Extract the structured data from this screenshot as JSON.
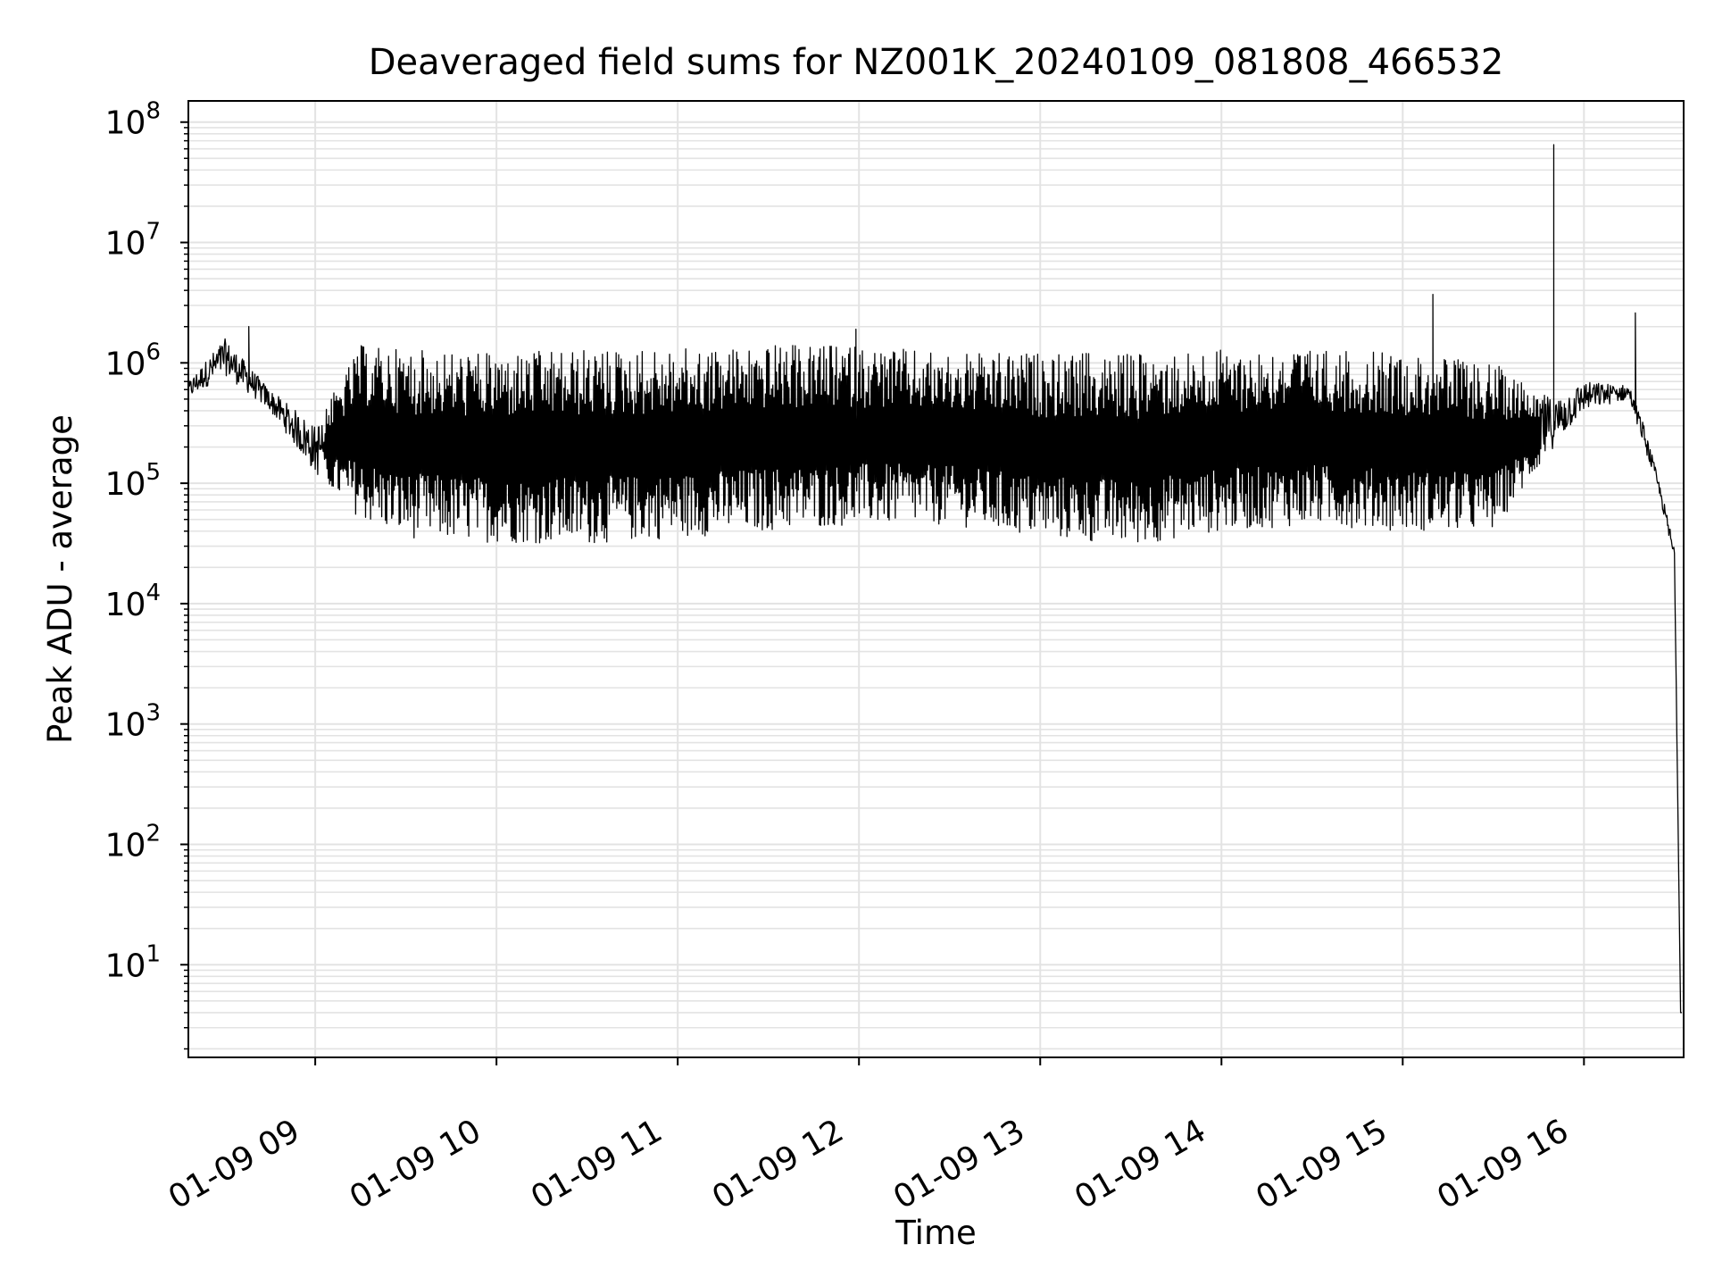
{
  "chart_data": {
    "type": "line",
    "title": "Deaveraged field sums for NZ001K_20240109_081808_466532",
    "xlabel": "Time",
    "ylabel": "Peak ADU - average",
    "yscale": "log",
    "ylim": [
      1.7,
      150000000
    ],
    "xlim": [
      "2024-01-09 08:18",
      "2024-01-09 16:33"
    ],
    "x_ticks": [
      {
        "value": "2024-01-09 09:00",
        "label": "01-09 09"
      },
      {
        "value": "2024-01-09 10:00",
        "label": "01-09 10"
      },
      {
        "value": "2024-01-09 11:00",
        "label": "01-09 11"
      },
      {
        "value": "2024-01-09 12:00",
        "label": "01-09 12"
      },
      {
        "value": "2024-01-09 13:00",
        "label": "01-09 13"
      },
      {
        "value": "2024-01-09 14:00",
        "label": "01-09 14"
      },
      {
        "value": "2024-01-09 15:00",
        "label": "01-09 15"
      },
      {
        "value": "2024-01-09 16:00",
        "label": "01-09 16"
      }
    ],
    "y_ticks": [
      {
        "value": 10,
        "base": "10",
        "exp": "1"
      },
      {
        "value": 100,
        "base": "10",
        "exp": "2"
      },
      {
        "value": 1000,
        "base": "10",
        "exp": "3"
      },
      {
        "value": 10000,
        "base": "10",
        "exp": "4"
      },
      {
        "value": 100000,
        "base": "10",
        "exp": "5"
      },
      {
        "value": 1000000,
        "base": "10",
        "exp": "6"
      },
      {
        "value": 10000000,
        "base": "10",
        "exp": "7"
      },
      {
        "value": 100000000,
        "base": "10",
        "exp": "8"
      }
    ],
    "grid": true,
    "line_color": "#000000",
    "grid_color": "#e3e3e3",
    "series": [
      {
        "values_approx": {
          "envelope": [
            {
              "time": "2024-01-09 08:18",
              "upper": 700000,
              "lower": 500000
            },
            {
              "time": "2024-01-09 08:30",
              "upper": 1600000,
              "lower": 800000
            },
            {
              "time": "2024-01-09 08:45",
              "upper": 600000,
              "lower": 400000
            },
            {
              "time": "2024-01-09 09:00",
              "upper": 300000,
              "lower": 120000
            },
            {
              "time": "2024-01-09 09:15",
              "upper": 1400000,
              "lower": 50000
            },
            {
              "time": "2024-01-09 09:30",
              "upper": 1300000,
              "lower": 35000
            },
            {
              "time": "2024-01-09 10:00",
              "upper": 1200000,
              "lower": 32000
            },
            {
              "time": "2024-01-09 10:30",
              "upper": 1300000,
              "lower": 31000
            },
            {
              "time": "2024-01-09 11:00",
              "upper": 1300000,
              "lower": 35000
            },
            {
              "time": "2024-01-09 11:30",
              "upper": 1400000,
              "lower": 40000
            },
            {
              "time": "2024-01-09 12:00",
              "upper": 1400000,
              "lower": 45000
            },
            {
              "time": "2024-01-09 12:30",
              "upper": 1200000,
              "lower": 45000
            },
            {
              "time": "2024-01-09 13:00",
              "upper": 1200000,
              "lower": 35000
            },
            {
              "time": "2024-01-09 13:30",
              "upper": 1200000,
              "lower": 30000
            },
            {
              "time": "2024-01-09 14:00",
              "upper": 1300000,
              "lower": 40000
            },
            {
              "time": "2024-01-09 14:30",
              "upper": 1300000,
              "lower": 45000
            },
            {
              "time": "2024-01-09 15:00",
              "upper": 1200000,
              "lower": 40000
            },
            {
              "time": "2024-01-09 15:30",
              "upper": 1000000,
              "lower": 40000
            },
            {
              "time": "2024-01-09 15:50",
              "upper": 500000,
              "lower": 200000
            },
            {
              "time": "2024-01-09 16:00",
              "upper": 700000,
              "lower": 400000
            },
            {
              "time": "2024-01-09 16:15",
              "upper": 650000,
              "lower": 500000
            },
            {
              "time": "2024-01-09 16:20",
              "upper": 300000,
              "lower": 200000
            },
            {
              "time": "2024-01-09 16:25",
              "upper": 100000,
              "lower": 80000
            },
            {
              "time": "2024-01-09 16:30",
              "upper": 30000,
              "lower": 20000
            },
            {
              "time": "2024-01-09 16:32",
              "upper": 4,
              "lower": 4
            }
          ],
          "spikes": [
            {
              "time": "2024-01-09 08:38",
              "value": 2000000
            },
            {
              "time": "2024-01-09 11:59",
              "value": 1900000
            },
            {
              "time": "2024-01-09 15:10",
              "value": 3700000
            },
            {
              "time": "2024-01-09 15:50",
              "value": 65000000
            },
            {
              "time": "2024-01-09 16:17",
              "value": 2600000
            }
          ]
        }
      }
    ]
  }
}
